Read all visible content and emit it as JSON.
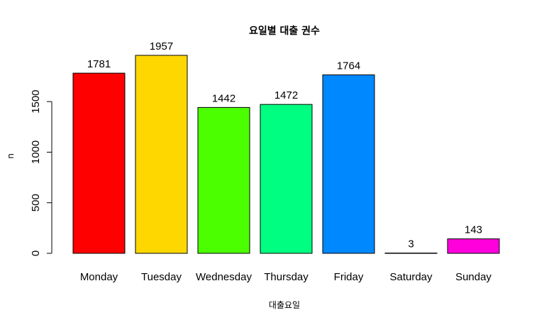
{
  "chart_data": {
    "type": "bar",
    "title": "요일별 대출 권수",
    "xlabel": "대출요일",
    "ylabel": "n",
    "categories": [
      "Monday",
      "Tuesday",
      "Wednesday",
      "Thursday",
      "Friday",
      "Saturday",
      "Sunday"
    ],
    "values": [
      1781,
      1957,
      1442,
      1472,
      1764,
      3,
      143
    ],
    "colors": [
      "#ff0000",
      "#ffd700",
      "#4cff00",
      "#00ff80",
      "#0088ff",
      "#1a0080",
      "#ff00dd"
    ],
    "yticks": [
      0,
      500,
      1000,
      1500
    ],
    "ylim": [
      0,
      1957
    ],
    "grid": false,
    "legend": "none"
  }
}
